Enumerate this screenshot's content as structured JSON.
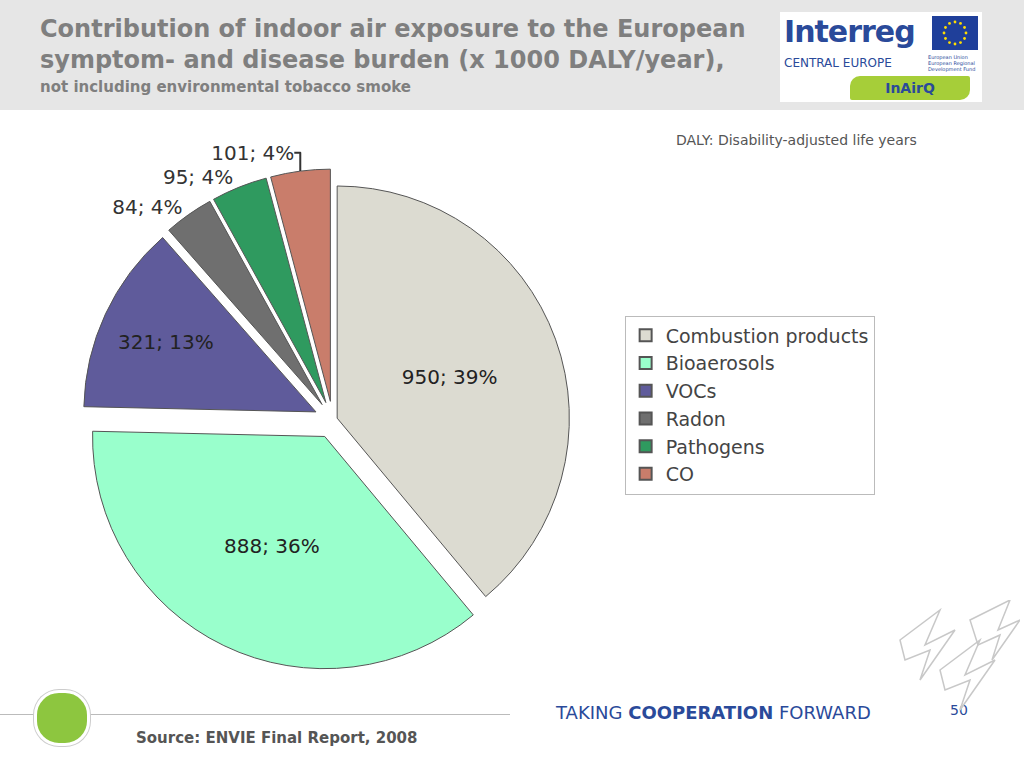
{
  "chart_data": {
    "type": "pie",
    "title": "Contribution of indoor air exposure to the European symptom- and disease burden (x 1000 DALY/year),",
    "subtitle": "not including environmental tobacco smoke",
    "annotations": [
      "DALY: Disability-adjusted life years"
    ],
    "categories": [
      "Combustion products",
      "Bioaerosols",
      "VOCs",
      "Radon",
      "Pathogens",
      "CO"
    ],
    "values": [
      950,
      888,
      321,
      84,
      95,
      101
    ],
    "value_labels": [
      "950; 39%",
      "888; 36%",
      "321; 13%",
      "84; 4%",
      "95; 4%",
      "101; 4%"
    ],
    "colors": [
      "#dcdbd1",
      "#99ffcc",
      "#5f5b9b",
      "#6f6f6f",
      "#2f9a5f",
      "#c97d6b"
    ],
    "data_labels": true,
    "legend": "right"
  },
  "page": {
    "logo": {
      "brand": "Interreg",
      "region": "CENTRAL EUROPE",
      "fund": "European Union European Regional Development Fund",
      "project": "InAirQ"
    },
    "source": "Source: ENVIE Final Report, 2008",
    "footer": [
      "TAKING",
      "COOPERATION",
      "FORWARD"
    ],
    "page_number": 50
  }
}
